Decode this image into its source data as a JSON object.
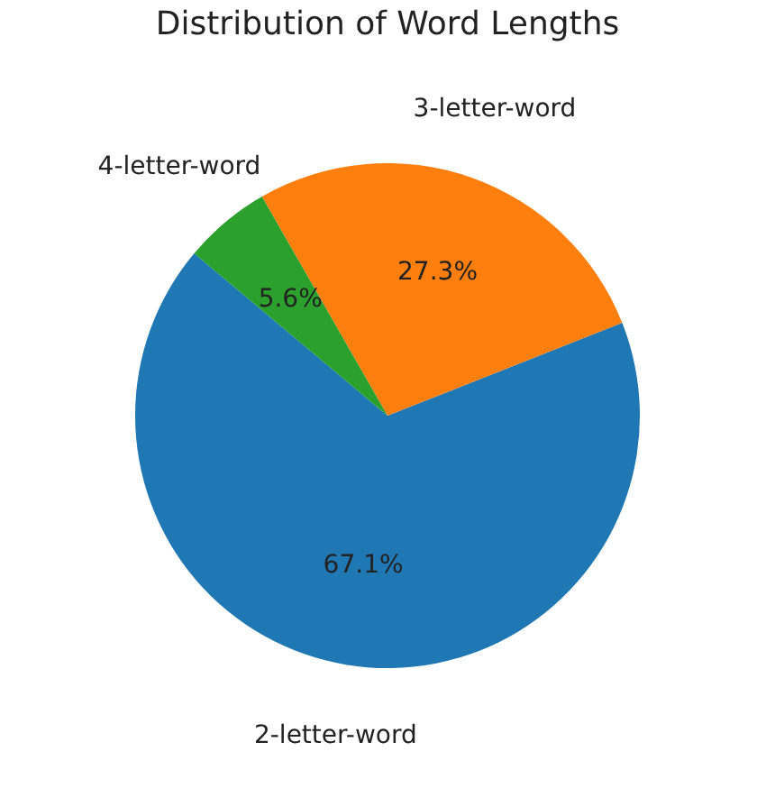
{
  "chart_data": {
    "type": "pie",
    "title": "Distribution of Word Lengths",
    "categories": [
      "2-letter-word",
      "3-letter-word",
      "4-letter-word"
    ],
    "values": [
      67.1,
      27.3,
      5.6
    ],
    "colors": [
      "#1f77b4",
      "#ff7f0e",
      "#2ca02c"
    ],
    "value_labels": [
      "67.1%",
      "27.3%",
      "5.6%"
    ]
  }
}
